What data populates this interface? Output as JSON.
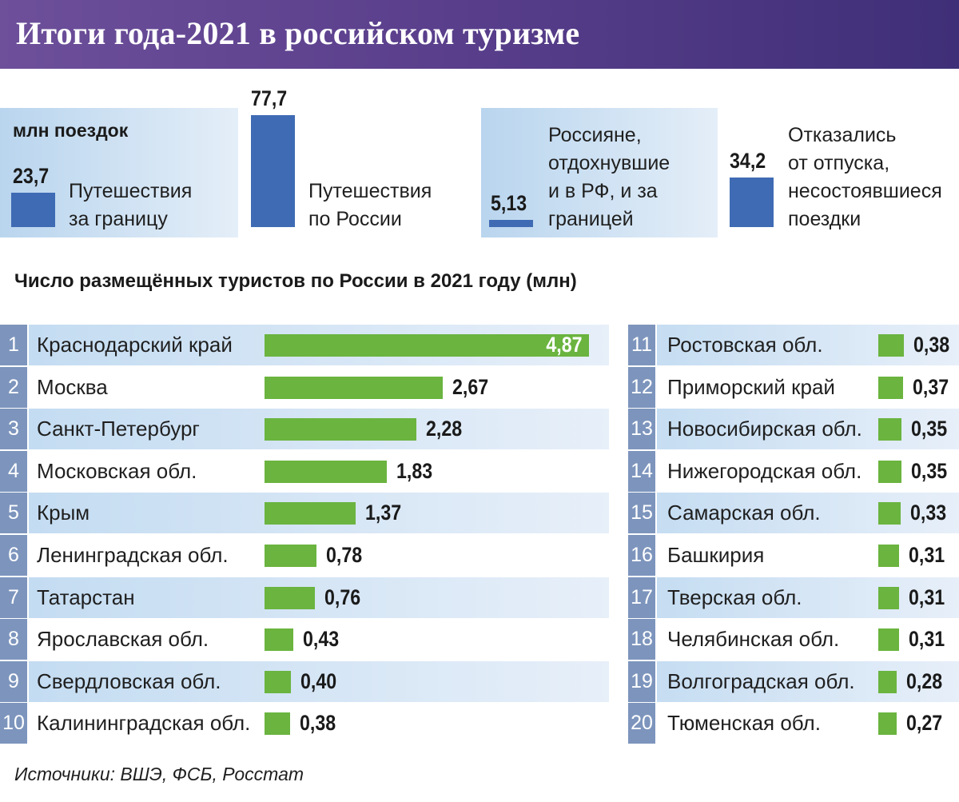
{
  "header": {
    "title": "Итоги года-2021 в российском туризме"
  },
  "summary": {
    "unit": "млн поездок",
    "items": [
      {
        "value": "23,7",
        "label_lines": [
          "Путешествия",
          "за границу"
        ]
      },
      {
        "value": "77,7",
        "label_lines": [
          "Путешествия",
          "по России"
        ]
      },
      {
        "value": "5,13",
        "label_lines": [
          "Россияне,",
          "отдохнувшие",
          "и в РФ, и за",
          "границей"
        ]
      },
      {
        "value": "34,2",
        "label_lines": [
          "Отказались",
          "от отпуска,",
          "несостоявшиеся",
          "поездки"
        ]
      }
    ]
  },
  "chart_title": "Число размещённых туристов по России в 2021 году (млн)",
  "source": "Источники: ВШЭ, ФСБ, Росстат",
  "colors": {
    "header_start": "#6d4f9a",
    "header_end": "#3f2f78",
    "summary_bar": "#3f6bb4",
    "ranking_bar": "#6ab43f",
    "rank_badge": "#7d95bd",
    "row_shade": "#c2dbf1"
  },
  "chart_data": [
    {
      "type": "bar",
      "title": "",
      "ylabel": "млн поездок",
      "categories": [
        "Путешествия за границу",
        "Путешествия по России",
        "Россияне, отдохнувшие и в РФ, и за границей",
        "Отказались от отпуска, несостоявшиеся поездки"
      ],
      "values": [
        23.7,
        77.7,
        5.13,
        34.2
      ]
    },
    {
      "type": "bar",
      "orientation": "horizontal",
      "title": "Число размещённых туристов по России в 2021 году (млн)",
      "rows": [
        {
          "rank": "1",
          "region": "Краснодарский край",
          "value": 4.87,
          "label": "4,87"
        },
        {
          "rank": "2",
          "region": "Москва",
          "value": 2.67,
          "label": "2,67"
        },
        {
          "rank": "3",
          "region": "Санкт-Петербург",
          "value": 2.28,
          "label": "2,28"
        },
        {
          "rank": "4",
          "region": "Московская обл.",
          "value": 1.83,
          "label": "1,83"
        },
        {
          "rank": "5",
          "region": "Крым",
          "value": 1.37,
          "label": "1,37"
        },
        {
          "rank": "6",
          "region": "Ленинградская обл.",
          "value": 0.78,
          "label": "0,78"
        },
        {
          "rank": "7",
          "region": "Татарстан",
          "value": 0.76,
          "label": "0,76"
        },
        {
          "rank": "8",
          "region": "Ярославская обл.",
          "value": 0.43,
          "label": "0,43"
        },
        {
          "rank": "9",
          "region": "Свердловская обл.",
          "value": 0.4,
          "label": "0,40"
        },
        {
          "rank": "10",
          "region": "Калининградская обл.",
          "value": 0.38,
          "label": "0,38"
        },
        {
          "rank": "11",
          "region": "Ростовская обл.",
          "value": 0.38,
          "label": "0,38"
        },
        {
          "rank": "12",
          "region": "Приморский край",
          "value": 0.37,
          "label": "0,37"
        },
        {
          "rank": "13",
          "region": "Новосибирская обл.",
          "value": 0.35,
          "label": "0,35"
        },
        {
          "rank": "14",
          "region": "Нижегородская обл.",
          "value": 0.35,
          "label": "0,35"
        },
        {
          "rank": "15",
          "region": "Самарская обл.",
          "value": 0.33,
          "label": "0,33"
        },
        {
          "rank": "16",
          "region": "Башкирия",
          "value": 0.31,
          "label": "0,31"
        },
        {
          "rank": "17",
          "region": "Тверская обл.",
          "value": 0.31,
          "label": "0,31"
        },
        {
          "rank": "18",
          "region": "Челябинская обл.",
          "value": 0.31,
          "label": "0,31"
        },
        {
          "rank": "19",
          "region": "Волгоградская обл.",
          "value": 0.28,
          "label": "0,28"
        },
        {
          "rank": "20",
          "region": "Тюменская обл.",
          "value": 0.27,
          "label": "0,27"
        }
      ]
    }
  ]
}
